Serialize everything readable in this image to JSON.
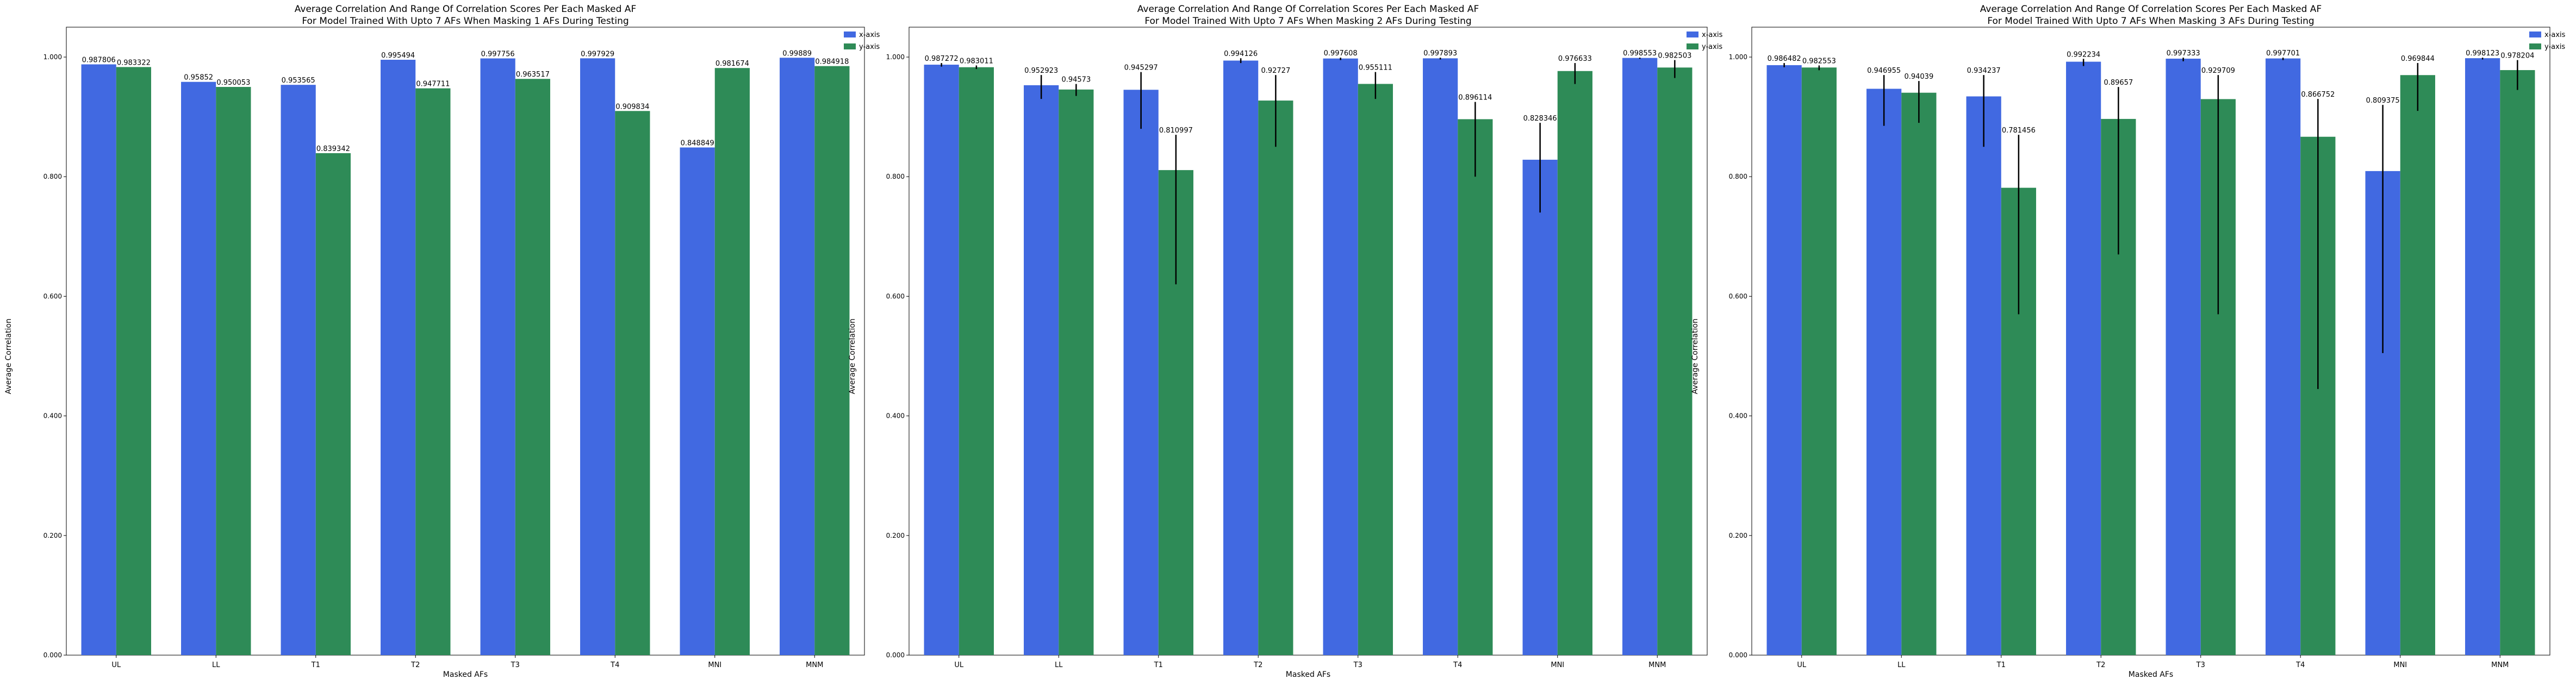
{
  "colors": {
    "x_axis": "#4169e1",
    "y_axis": "#2e8b57",
    "error_bar": "#000000"
  },
  "chart_data": [
    {
      "type": "bar",
      "title": "Average Correlation And Range Of Correlation Scores Per Each Masked AF",
      "subtitle": "For Model Trained With Upto 7 AFs When Masking 1 AFs During Testing",
      "xlabel": "Masked AFs",
      "ylabel": "Average Correlation",
      "ylim": [
        0,
        1.05
      ],
      "yticks": [
        "0.000",
        "0.200",
        "0.400",
        "0.600",
        "0.800",
        "1.000"
      ],
      "categories": [
        "UL",
        "LL",
        "T1",
        "T2",
        "T3",
        "T4",
        "MNI",
        "MNM"
      ],
      "legend_position": "top-right",
      "series": [
        {
          "name": "x-axis",
          "color": "#4169e1",
          "values": [
            0.987806,
            0.95852,
            0.953565,
            0.995494,
            0.997756,
            0.997929,
            0.848849,
            0.99889
          ],
          "labels": [
            "0.987806",
            "0.95852",
            "0.953565",
            "0.995494",
            "0.997756",
            "0.997929",
            "0.848849",
            "0.99889"
          ],
          "err_low": [
            0.987806,
            0.95852,
            0.953565,
            0.995494,
            0.997756,
            0.997929,
            0.848849,
            0.99889
          ],
          "err_high": [
            0.987806,
            0.95852,
            0.953565,
            0.995494,
            0.997756,
            0.997929,
            0.848849,
            0.99889
          ]
        },
        {
          "name": "y-axis",
          "color": "#2e8b57",
          "values": [
            0.983322,
            0.950053,
            0.839342,
            0.947711,
            0.963517,
            0.909834,
            0.981674,
            0.984918
          ],
          "labels": [
            "0.983322",
            "0.950053",
            "0.839342",
            "0.947711",
            "0.963517",
            "0.909834",
            "0.981674",
            "0.984918"
          ],
          "err_low": [
            0.983322,
            0.950053,
            0.839342,
            0.947711,
            0.963517,
            0.909834,
            0.981674,
            0.984918
          ],
          "err_high": [
            0.983322,
            0.950053,
            0.839342,
            0.947711,
            0.963517,
            0.909834,
            0.981674,
            0.984918
          ]
        }
      ]
    },
    {
      "type": "bar",
      "title": "Average Correlation And Range Of Correlation Scores Per Each Masked AF",
      "subtitle": "For Model Trained With Upto 7 AFs When Masking 2 AFs During Testing",
      "xlabel": "Masked AFs",
      "ylabel": "Average Correlation",
      "ylim": [
        0,
        1.05
      ],
      "yticks": [
        "0.000",
        "0.200",
        "0.400",
        "0.600",
        "0.800",
        "1.000"
      ],
      "categories": [
        "UL",
        "LL",
        "T1",
        "T2",
        "T3",
        "T4",
        "MNI",
        "MNM"
      ],
      "legend_position": "top-right",
      "series": [
        {
          "name": "x-axis",
          "color": "#4169e1",
          "values": [
            0.987272,
            0.952923,
            0.945297,
            0.994126,
            0.997608,
            0.997893,
            0.828346,
            0.998553
          ],
          "labels": [
            "0.987272",
            "0.952923",
            "0.945297",
            "0.994126",
            "0.997608",
            "0.997893",
            "0.828346",
            "0.998553"
          ],
          "err_low": [
            0.984,
            0.93,
            0.88,
            0.99,
            0.995,
            0.996,
            0.74,
            0.997
          ],
          "err_high": [
            0.99,
            0.97,
            0.975,
            0.998,
            0.999,
            0.999,
            0.89,
            0.999
          ]
        },
        {
          "name": "y-axis",
          "color": "#2e8b57",
          "values": [
            0.983011,
            0.94573,
            0.810997,
            0.92727,
            0.955111,
            0.896114,
            0.976633,
            0.982503
          ],
          "labels": [
            "0.983011",
            "0.94573",
            "0.810997",
            "0.92727",
            "0.955111",
            "0.896114",
            "0.976633",
            "0.982503"
          ],
          "err_low": [
            0.98,
            0.935,
            0.62,
            0.85,
            0.93,
            0.8,
            0.955,
            0.965
          ],
          "err_high": [
            0.986,
            0.955,
            0.87,
            0.97,
            0.975,
            0.925,
            0.99,
            0.995
          ]
        }
      ]
    },
    {
      "type": "bar",
      "title": "Average Correlation And Range Of Correlation Scores Per Each Masked AF",
      "subtitle": "For Model Trained With Upto 7 AFs When Masking 3 AFs During Testing",
      "xlabel": "Masked AFs",
      "ylabel": "Average Correlation",
      "ylim": [
        0,
        1.05
      ],
      "yticks": [
        "0.000",
        "0.200",
        "0.400",
        "0.600",
        "0.800",
        "1.000"
      ],
      "categories": [
        "UL",
        "LL",
        "T1",
        "T2",
        "T3",
        "T4",
        "MNI",
        "MNM"
      ],
      "legend_position": "top-right",
      "series": [
        {
          "name": "x-axis",
          "color": "#4169e1",
          "values": [
            0.986482,
            0.946955,
            0.934237,
            0.992234,
            0.997333,
            0.997701,
            0.809375,
            0.998123
          ],
          "labels": [
            "0.986482",
            "0.946955",
            "0.934237",
            "0.992234",
            "0.997333",
            "0.997701",
            "0.809375",
            "0.998123"
          ],
          "err_low": [
            0.983,
            0.885,
            0.85,
            0.985,
            0.993,
            0.995,
            0.505,
            0.996
          ],
          "err_high": [
            0.99,
            0.97,
            0.97,
            0.997,
            0.999,
            0.999,
            0.92,
            0.999
          ]
        },
        {
          "name": "y-axis",
          "color": "#2e8b57",
          "values": [
            0.982553,
            0.94039,
            0.781456,
            0.89657,
            0.929709,
            0.866752,
            0.969844,
            0.978204
          ],
          "labels": [
            "0.982553",
            "0.94039",
            "0.781456",
            "0.89657",
            "0.929709",
            "0.866752",
            "0.969844",
            "0.978204"
          ],
          "err_low": [
            0.978,
            0.89,
            0.57,
            0.67,
            0.57,
            0.445,
            0.91,
            0.945
          ],
          "err_high": [
            0.986,
            0.96,
            0.87,
            0.95,
            0.97,
            0.93,
            0.99,
            0.995
          ]
        }
      ]
    }
  ]
}
